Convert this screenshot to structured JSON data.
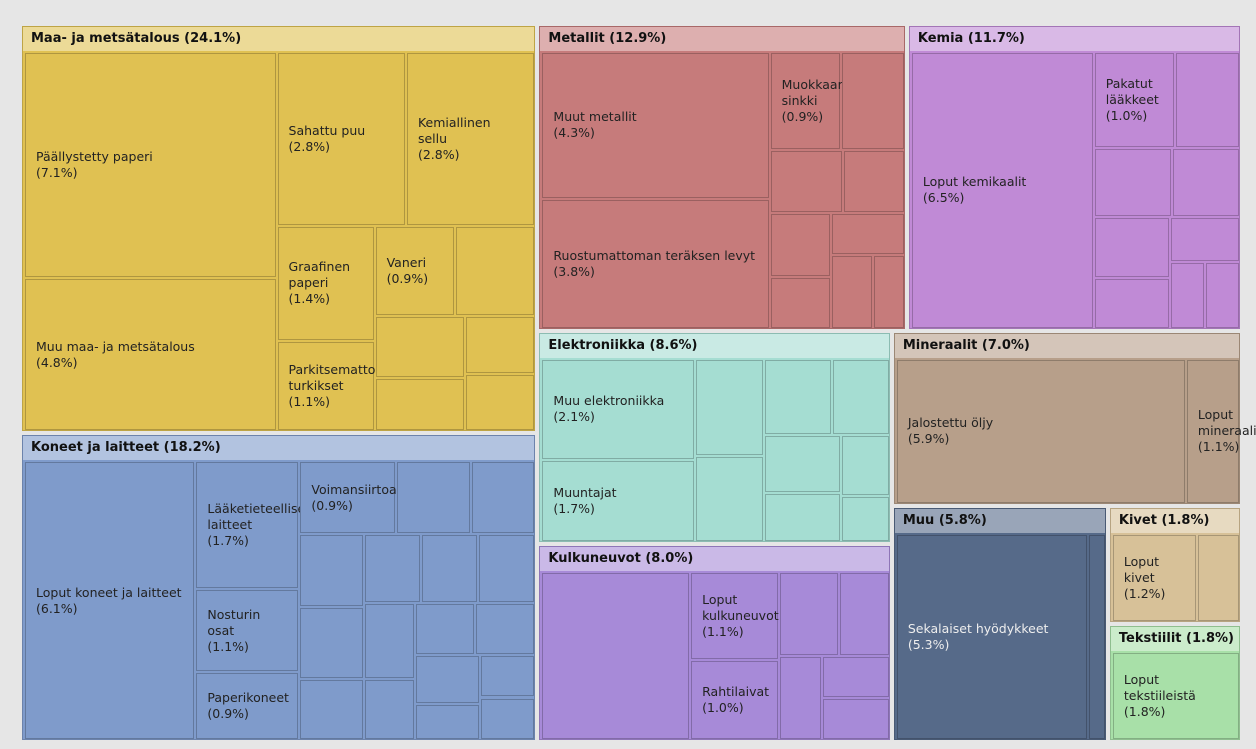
{
  "chart_data": {
    "type": "treemap",
    "groups": [
      {
        "name": "Maa- ja metsätalous",
        "value": 24.1,
        "value_label": "(24.1%)",
        "color": "#e0c152",
        "children": [
          {
            "name": "Päällystetty paperi",
            "value": 7.1,
            "value_label": "(7.1%)"
          },
          {
            "name": "Muu maa- ja metsätalous",
            "value": 4.8,
            "value_label": "(4.8%)"
          },
          {
            "name": "Sahattu puu",
            "value": 2.8,
            "value_label": "(2.8%)"
          },
          {
            "name": "Kemiallinen sellu",
            "value": 2.8,
            "value_label": "(2.8%)"
          },
          {
            "name": "Graafinen paperi",
            "value": 1.4,
            "value_label": "(1.4%)"
          },
          {
            "name": "Parkitsemattomat turkikset",
            "value": 1.1,
            "value_label": "(1.1%)"
          },
          {
            "name": "Vaneri",
            "value": 0.9,
            "value_label": "(0.9%)"
          },
          {
            "name": null,
            "value": 0.9
          },
          {
            "name": null,
            "value": 0.7
          },
          {
            "name": null,
            "value": 0.6
          },
          {
            "name": null,
            "value": 0.5
          },
          {
            "name": null,
            "value": 0.5
          }
        ]
      },
      {
        "name": "Koneet ja laitteet",
        "value": 18.2,
        "value_label": "(18.2%)",
        "color": "#7f9bcb",
        "children": [
          {
            "name": "Loput koneet ja laitteet",
            "value": 6.1,
            "value_label": "(6.1%)"
          },
          {
            "name": "Lääketieteelliset laitteet",
            "value": 1.7,
            "value_label": "(1.7%)"
          },
          {
            "name": "Nosturin osat",
            "value": 1.1,
            "value_label": "(1.1%)"
          },
          {
            "name": "Paperikoneet",
            "value": 0.9,
            "value_label": "(0.9%)"
          },
          {
            "name": "Voimansiirtoakselit",
            "value": 0.9,
            "value_label": "(0.9%)"
          },
          {
            "name": null,
            "value": 0.7
          },
          {
            "name": null,
            "value": 0.6
          },
          {
            "name": null,
            "value": 0.6
          },
          {
            "name": null,
            "value": 0.6
          },
          {
            "name": null,
            "value": 0.5
          },
          {
            "name": null,
            "value": 0.5
          },
          {
            "name": null,
            "value": 0.5
          },
          {
            "name": null,
            "value": 0.5
          },
          {
            "name": null,
            "value": 0.5
          },
          {
            "name": null,
            "value": 0.4
          },
          {
            "name": null,
            "value": 0.4
          },
          {
            "name": null,
            "value": 0.4
          },
          {
            "name": null,
            "value": 0.4
          },
          {
            "name": null,
            "value": 0.3
          },
          {
            "name": null,
            "value": 0.3
          },
          {
            "name": null,
            "value": 0.3
          }
        ]
      },
      {
        "name": "Metallit",
        "value": 12.9,
        "value_label": "(12.9%)",
        "color": "#c67b7b",
        "children": [
          {
            "name": "Muut metallit",
            "value": 4.3,
            "value_label": "(4.3%)"
          },
          {
            "name": "Ruostumattoman teräksen levyt",
            "value": 3.8,
            "value_label": "(3.8%)"
          },
          {
            "name": "Muokkaamaton sinkki",
            "value": 0.9,
            "value_label": "(0.9%)"
          },
          {
            "name": null,
            "value": 0.8
          },
          {
            "name": null,
            "value": 0.6
          },
          {
            "name": null,
            "value": 0.5
          },
          {
            "name": null,
            "value": 0.5
          },
          {
            "name": null,
            "value": 0.4
          },
          {
            "name": null,
            "value": 0.4
          },
          {
            "name": null,
            "value": 0.4
          },
          {
            "name": null,
            "value": 0.3
          }
        ]
      },
      {
        "name": "Kemia",
        "value": 11.7,
        "value_label": "(11.7%)",
        "color": "#c08ad6",
        "children": [
          {
            "name": "Loput kemikaalit",
            "value": 6.5,
            "value_label": "(6.5%)"
          },
          {
            "name": "Pakatut lääkkeet",
            "value": 1.0,
            "value_label": "(1.0%)"
          },
          {
            "name": null,
            "value": 0.8
          },
          {
            "name": null,
            "value": 0.7
          },
          {
            "name": null,
            "value": 0.6
          },
          {
            "name": null,
            "value": 0.6
          },
          {
            "name": null,
            "value": 0.5
          },
          {
            "name": null,
            "value": 0.4
          },
          {
            "name": null,
            "value": 0.3
          },
          {
            "name": null,
            "value": 0.3
          }
        ]
      },
      {
        "name": "Elektroniikka",
        "value": 8.6,
        "value_label": "(8.6%)",
        "color": "#a5ddd2",
        "children": [
          {
            "name": "Muu elektroniikka",
            "value": 2.1,
            "value_label": "(2.1%)"
          },
          {
            "name": "Muuntajat",
            "value": 1.7,
            "value_label": "(1.7%)"
          },
          {
            "name": null,
            "value": 0.9
          },
          {
            "name": null,
            "value": 0.8
          },
          {
            "name": null,
            "value": 0.7
          },
          {
            "name": null,
            "value": 0.6
          },
          {
            "name": null,
            "value": 0.6
          },
          {
            "name": null,
            "value": 0.5
          },
          {
            "name": null,
            "value": 0.4
          },
          {
            "name": null,
            "value": 0.3
          }
        ]
      },
      {
        "name": "Kulkuneuvot",
        "value": 8.0,
        "value_label": "(8.0%)",
        "color": "#a78ad8",
        "children": [
          {
            "name": null,
            "value": 3.5
          },
          {
            "name": "Loput kulkuneuvot",
            "value": 1.1,
            "value_label": "(1.1%)"
          },
          {
            "name": "Rahtilaivat",
            "value": 1.0,
            "value_label": "(1.0%)"
          },
          {
            "name": null,
            "value": 0.7
          },
          {
            "name": null,
            "value": 0.6
          },
          {
            "name": null,
            "value": 0.5
          },
          {
            "name": null,
            "value": 0.4
          },
          {
            "name": null,
            "value": 0.4
          }
        ]
      },
      {
        "name": "Mineraalit",
        "value": 7.0,
        "value_label": "(7.0%)",
        "color": "#b79f8a",
        "children": [
          {
            "name": "Jalostettu öljy",
            "value": 5.9,
            "value_label": "(5.9%)"
          },
          {
            "name": "Loput mineraalit",
            "value": 1.1,
            "value_label": "(1.1%)"
          }
        ]
      },
      {
        "name": "Muu",
        "value": 5.8,
        "value_label": "(5.8%)",
        "color": "#566a89",
        "children": [
          {
            "name": "Sekalaiset hyödykkeet",
            "value": 5.3,
            "value_label": "(5.3%)"
          },
          {
            "name": null,
            "value": 0.5
          }
        ]
      },
      {
        "name": "Kivet",
        "value": 1.8,
        "value_label": "(1.8%)",
        "color": "#d7c198",
        "children": [
          {
            "name": "Loput kivet",
            "value": 1.2,
            "value_label": "(1.2%)"
          },
          {
            "name": null,
            "value": 0.6
          }
        ]
      },
      {
        "name": "Tekstiilit",
        "value": 1.8,
        "value_label": "(1.8%)",
        "color": "#a8e0a8",
        "children": [
          {
            "name": "Loput tekstiileistä",
            "value": 1.8,
            "value_label": "(1.8%)"
          }
        ]
      }
    ]
  }
}
